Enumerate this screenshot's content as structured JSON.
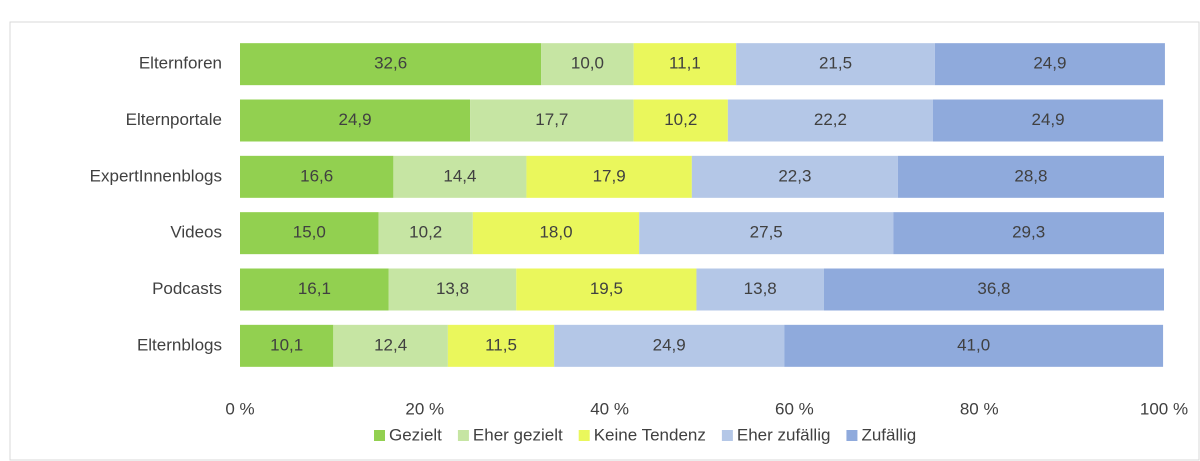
{
  "chart_data": {
    "type": "stacked_bar_horizontal",
    "categories": [
      "Elternforen",
      "Elternportale",
      "ExpertInnenblogs",
      "Videos",
      "Podcasts",
      "Elternblogs"
    ],
    "series": [
      {
        "name": "Gezielt",
        "color": "#92d050",
        "values": [
          32.6,
          24.9,
          16.6,
          15.0,
          16.1,
          10.1
        ],
        "value_labels": [
          "32,6",
          "24,9",
          "16,6",
          "15,0",
          "16,1",
          "10,1"
        ]
      },
      {
        "name": "Eher gezielt",
        "color": "#c6e5a3",
        "values": [
          10.0,
          17.7,
          14.4,
          10.2,
          13.8,
          12.4
        ],
        "value_labels": [
          "10,0",
          "17,7",
          "14,4",
          "10,2",
          "13,8",
          "12,4"
        ]
      },
      {
        "name": "Keine Tendenz",
        "color": "#eaf75c",
        "values": [
          11.1,
          10.2,
          17.9,
          18.0,
          19.5,
          11.5
        ],
        "value_labels": [
          "11,1",
          "10,2",
          "17,9",
          "18,0",
          "19,5",
          "11,5"
        ]
      },
      {
        "name": "Eher zufällig",
        "color": "#b4c7e7",
        "values": [
          21.5,
          22.2,
          22.3,
          27.5,
          13.8,
          24.9
        ],
        "value_labels": [
          "21,5",
          "22,2",
          "22,3",
          "27,5",
          "13,8",
          "24,9"
        ]
      },
      {
        "name": "Zufällig",
        "color": "#8faadc",
        "values": [
          24.9,
          24.9,
          28.8,
          29.3,
          36.8,
          41.0
        ],
        "value_labels": [
          "24,9",
          "24,9",
          "28,8",
          "29,3",
          "36,8",
          "41,0"
        ]
      }
    ],
    "xlim": [
      0,
      100
    ],
    "xticks": [
      {
        "value": 0,
        "label": "0 %"
      },
      {
        "value": 20,
        "label": "20 %"
      },
      {
        "value": 40,
        "label": "40 %"
      },
      {
        "value": 60,
        "label": "60 %"
      },
      {
        "value": 80,
        "label": "80 %"
      },
      {
        "value": 100,
        "label": "100 %"
      }
    ],
    "legend": "bottom"
  }
}
